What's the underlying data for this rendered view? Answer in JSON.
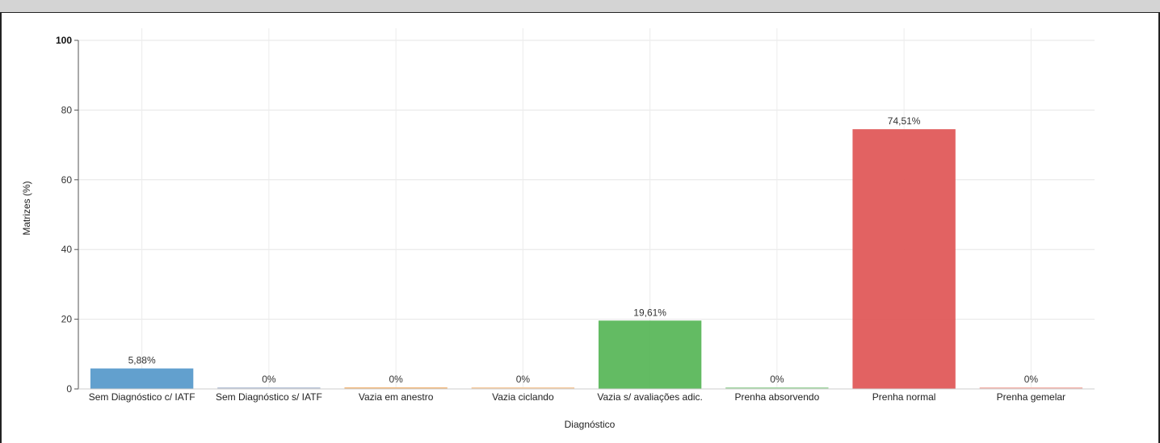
{
  "chart_data": {
    "type": "bar",
    "xlabel": "Diagnóstico",
    "ylabel": "Matrizes (%)",
    "ylim": [
      0,
      100
    ],
    "yticks": [
      0,
      20,
      40,
      60,
      80,
      100
    ],
    "grid": true,
    "categories": [
      "Sem Diagnóstico c/ IATF",
      "Sem Diagnóstico s/ IATF",
      "Vazia em anestro",
      "Vazia ciclando",
      "Vazia s/ avaliações adic.",
      "Prenha absorvendo",
      "Prenha normal",
      "Prenha gemelar"
    ],
    "values": [
      5.88,
      0,
      0,
      0,
      19.61,
      0,
      74.51,
      0
    ],
    "value_labels": [
      "5,88%",
      "0%",
      "0%",
      "0%",
      "19,61%",
      "0%",
      "74,51%",
      "0%"
    ],
    "colors": [
      "#5a9bcb",
      "#b7c3d6",
      "#f0b678",
      "#f3c79a",
      "#5bb75b",
      "#9fd49f",
      "#e05a5a",
      "#f2b2aa"
    ]
  }
}
